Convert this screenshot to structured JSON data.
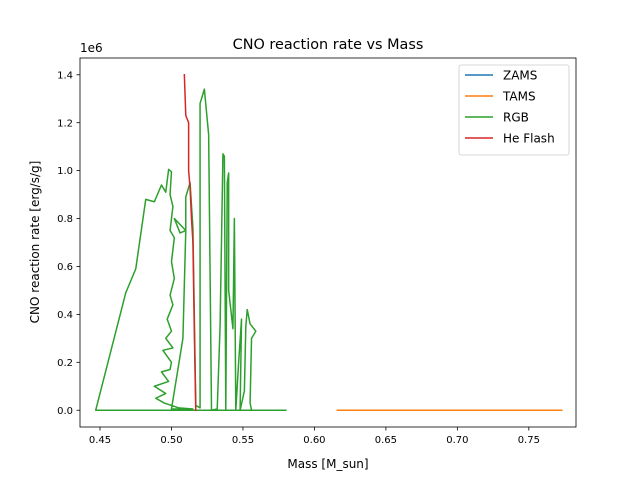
{
  "chart_data": {
    "type": "line",
    "title": "CNO reaction rate vs Mass",
    "xlabel": "Mass [M_sun]",
    "ylabel": "CNO reaction rate [erg/s/g]",
    "y_offset_label": "1e6",
    "y_scale": 1000000,
    "xlim": [
      0.436,
      0.783
    ],
    "ylim": [
      -0.07,
      1.47
    ],
    "x_ticks": [
      0.45,
      0.5,
      0.55,
      0.6,
      0.65,
      0.7,
      0.75
    ],
    "x_tick_labels": [
      "0.45",
      "0.50",
      "0.55",
      "0.60",
      "0.65",
      "0.70",
      "0.75"
    ],
    "y_ticks": [
      0,
      0.2,
      0.4,
      0.6,
      0.8,
      1.0,
      1.2,
      1.4
    ],
    "y_tick_labels": [
      "0.0",
      "0.2",
      "0.4",
      "0.6",
      "0.8",
      "1.0",
      "1.2",
      "1.4"
    ],
    "grid": false,
    "legend_position": "top-right",
    "series": [
      {
        "name": "ZAMS",
        "color": "#1f77b4",
        "points": [
          [
            0.718,
            0.0
          ],
          [
            0.773,
            0.0
          ]
        ]
      },
      {
        "name": "TAMS",
        "color": "#ff7f0e",
        "points": [
          [
            0.616,
            0.0
          ],
          [
            0.65,
            0.0
          ],
          [
            0.7,
            0.0
          ],
          [
            0.75,
            0.0
          ],
          [
            0.773,
            0.0
          ]
        ]
      },
      {
        "name": "RGB",
        "color": "#2ca02c",
        "points": [
          [
            0.58,
            0.0
          ],
          [
            0.55,
            0.0
          ],
          [
            0.53,
            0.0
          ],
          [
            0.51,
            0.0
          ],
          [
            0.49,
            0.0
          ],
          [
            0.47,
            0.0
          ],
          [
            0.447,
            0.0
          ],
          [
            0.468,
            0.49
          ],
          [
            0.475,
            0.59
          ],
          [
            0.482,
            0.88
          ],
          [
            0.488,
            0.87
          ],
          [
            0.493,
            0.94
          ],
          [
            0.496,
            0.91
          ],
          [
            0.498,
            1.005
          ],
          [
            0.5,
            0.995
          ],
          [
            0.499,
            0.9
          ],
          [
            0.501,
            0.85
          ],
          [
            0.499,
            0.75
          ],
          [
            0.502,
            0.72
          ],
          [
            0.5,
            0.62
          ],
          [
            0.502,
            0.55
          ],
          [
            0.499,
            0.48
          ],
          [
            0.501,
            0.44
          ],
          [
            0.497,
            0.38
          ],
          [
            0.5,
            0.33
          ],
          [
            0.496,
            0.3
          ],
          [
            0.501,
            0.26
          ],
          [
            0.494,
            0.25
          ],
          [
            0.5,
            0.2
          ],
          [
            0.499,
            0.17
          ],
          [
            0.493,
            0.16
          ],
          [
            0.498,
            0.12
          ],
          [
            0.488,
            0.1
          ],
          [
            0.496,
            0.07
          ],
          [
            0.489,
            0.05
          ],
          [
            0.495,
            0.03
          ],
          [
            0.505,
            0.01
          ],
          [
            0.515,
            0.005
          ],
          [
            0.5,
            0.005
          ],
          [
            0.508,
            0.3
          ],
          [
            0.51,
            0.75
          ],
          [
            0.502,
            0.8
          ],
          [
            0.506,
            0.74
          ],
          [
            0.51,
            0.75
          ],
          [
            0.51,
            0.89
          ],
          [
            0.513,
            0.95
          ],
          [
            0.515,
            0.76
          ],
          [
            0.517,
            0.02
          ],
          [
            0.52,
            0.01
          ],
          [
            0.52,
            1.28
          ],
          [
            0.523,
            1.34
          ],
          [
            0.526,
            1.15
          ],
          [
            0.528,
            0.0
          ],
          [
            0.532,
            0.005
          ],
          [
            0.534,
            0.35
          ],
          [
            0.536,
            1.07
          ],
          [
            0.537,
            1.06
          ],
          [
            0.538,
            0.0
          ],
          [
            0.539,
            0.95
          ],
          [
            0.54,
            0.99
          ],
          [
            0.54,
            0.5
          ],
          [
            0.543,
            0.34
          ],
          [
            0.544,
            0.8
          ],
          [
            0.545,
            0.0
          ],
          [
            0.547,
            0.2
          ],
          [
            0.549,
            0.38
          ],
          [
            0.548,
            0.0
          ],
          [
            0.551,
            0.08
          ],
          [
            0.552,
            0.35
          ],
          [
            0.553,
            0.42
          ],
          [
            0.555,
            0.36
          ],
          [
            0.559,
            0.33
          ],
          [
            0.556,
            0.3
          ],
          [
            0.555,
            0.03
          ],
          [
            0.556,
            0.0
          ],
          [
            0.58,
            0.0
          ]
        ]
      },
      {
        "name": "He Flash",
        "color": "#d62728",
        "points": [
          [
            0.509,
            1.4
          ],
          [
            0.51,
            1.23
          ],
          [
            0.512,
            1.2
          ],
          [
            0.512,
            1.16
          ],
          [
            0.512,
            1.0
          ],
          [
            0.513,
            0.93
          ],
          [
            0.514,
            0.8
          ],
          [
            0.515,
            0.7
          ],
          [
            0.516,
            0.32
          ],
          [
            0.517,
            0.0
          ]
        ]
      }
    ]
  }
}
